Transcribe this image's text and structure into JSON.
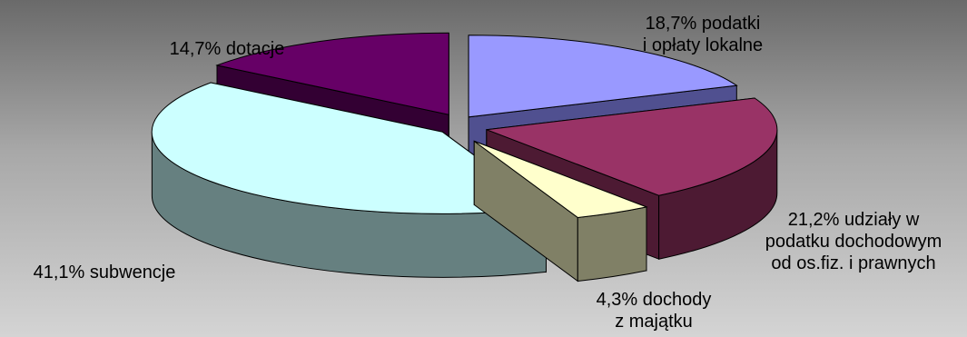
{
  "chart_data": {
    "type": "pie",
    "title": "",
    "three_d": true,
    "exploded": true,
    "slices": [
      {
        "name": "podatki i opłaty lokalne",
        "value": 18.7,
        "label_lines": [
          "18,7% podatki",
          "i opłaty lokalne"
        ],
        "color_top": "#9999ff",
        "color_side": "#505090"
      },
      {
        "name": "udziały w podatku dochodowym od os.fiz. i prawnych",
        "value": 21.2,
        "label_lines": [
          "21,2% udziały w",
          "podatku dochodowym",
          "od os.fiz. i prawnych"
        ],
        "color_top": "#993366",
        "color_side": "#4d1a33"
      },
      {
        "name": "dochody z majątku",
        "value": 4.3,
        "label_lines": [
          "4,3% dochody",
          "z majątku"
        ],
        "color_top": "#ffffcc",
        "color_side": "#808066"
      },
      {
        "name": "subwencje",
        "value": 41.1,
        "label_lines": [
          "41,1% subwencje"
        ],
        "color_top": "#ccffff",
        "color_side": "#668080"
      },
      {
        "name": "dotacje",
        "value": 14.7,
        "label_lines": [
          "14,7% dotacje"
        ],
        "color_top": "#660066",
        "color_side": "#330033"
      }
    ],
    "legend": "none",
    "grid": false
  }
}
